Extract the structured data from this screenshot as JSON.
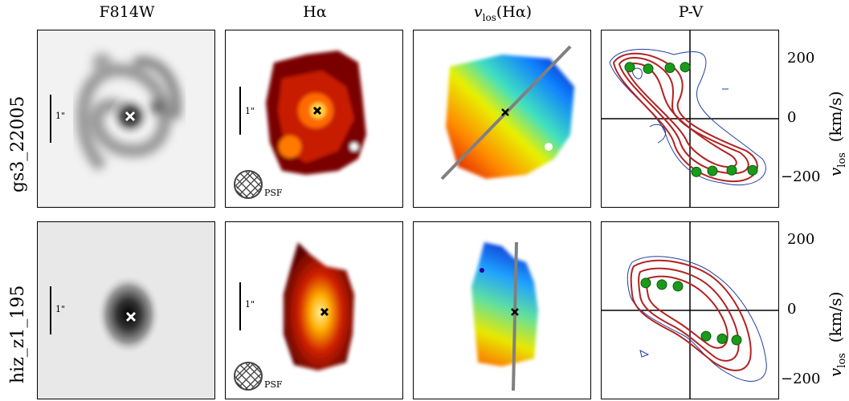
{
  "columns": {
    "f814w": "F814W",
    "halpha": "Hα",
    "vlos": "v_los(Hα)",
    "vlos_main": "v",
    "vlos_sub": "los",
    "vlos_paren": "(Hα)",
    "pv": "P-V"
  },
  "rows": [
    {
      "label": "gs3_22005",
      "scale": "1\"",
      "psf": "PSF"
    },
    {
      "label": "hiz_z1_195",
      "scale": "1\"",
      "psf": "PSF"
    }
  ],
  "pv_axis": {
    "ticks": [
      "200",
      "0",
      "−200"
    ],
    "label_main": "v",
    "label_sub": "los",
    "label_unit": "(km/s)"
  },
  "chart_data": [
    {
      "type": "scatter",
      "title": "P-V",
      "ylabel": "v_los (km/s)",
      "ylim": [
        -260,
        260
      ],
      "row": "gs3_22005",
      "points_velocity": [
        160,
        155,
        158,
        160,
        -165,
        -162,
        -160,
        -160
      ]
    },
    {
      "type": "scatter",
      "title": "P-V",
      "ylabel": "v_los (km/s)",
      "ylim": [
        -260,
        260
      ],
      "row": "hiz_z1_195",
      "points_velocity": [
        85,
        80,
        75,
        -80,
        -88,
        -92
      ]
    }
  ],
  "colors": {
    "contour_red": "#b22222",
    "contour_blue": "#1f3fa0",
    "points": "#1a9a1a",
    "slit": "#808080"
  }
}
